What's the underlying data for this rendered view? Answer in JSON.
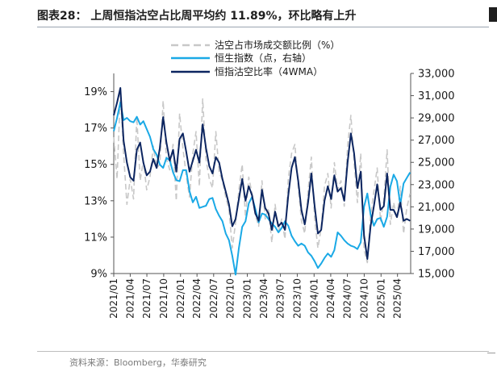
{
  "header": {
    "title": "图表28： 上周恒指沽空占比周平均约 11.89%，环比略有上升"
  },
  "footer": {
    "source": "资料来源：Bloomberg，华泰研究"
  },
  "colors": {
    "short_ratio": "#c8c8c8",
    "hsi": "#1aa9e6",
    "short_ratio_4wma": "#0c2560"
  },
  "chart_data": {
    "type": "line",
    "title": "",
    "x": [
      "2021-01-01",
      "2021-01-19",
      "2021-02-06",
      "2021-02-24",
      "2021-03-14",
      "2021-04-01",
      "2021-04-19",
      "2021-05-07",
      "2021-05-25",
      "2021-06-12",
      "2021-06-30",
      "2021-07-18",
      "2021-08-05",
      "2021-08-23",
      "2021-09-10",
      "2021-09-28",
      "2021-10-16",
      "2021-11-03",
      "2021-11-21",
      "2021-12-09",
      "2021-12-27",
      "2022-01-14",
      "2022-02-01",
      "2022-02-19",
      "2022-03-09",
      "2022-03-27",
      "2022-04-14",
      "2022-05-02",
      "2022-05-20",
      "2022-06-07",
      "2022-06-25",
      "2022-07-13",
      "2022-07-31",
      "2022-08-18",
      "2022-09-05",
      "2022-09-23",
      "2022-10-11",
      "2022-10-29",
      "2022-11-16",
      "2022-12-04",
      "2022-12-22",
      "2023-01-09",
      "2023-01-27",
      "2023-02-14",
      "2023-03-04",
      "2023-03-22",
      "2023-04-09",
      "2023-04-27",
      "2023-05-15",
      "2023-06-02",
      "2023-06-20",
      "2023-07-08",
      "2023-07-26",
      "2023-08-13",
      "2023-08-31",
      "2023-09-18",
      "2023-10-06",
      "2023-10-24",
      "2023-11-11",
      "2023-11-29",
      "2023-12-17",
      "2024-01-04",
      "2024-01-22",
      "2024-02-09",
      "2024-02-27",
      "2024-03-16",
      "2024-04-03",
      "2024-04-21",
      "2024-05-09",
      "2024-05-27",
      "2024-06-14",
      "2024-07-02",
      "2024-07-20",
      "2024-08-07",
      "2024-08-25",
      "2024-09-12",
      "2024-09-30",
      "2024-10-18",
      "2024-11-05",
      "2024-11-23",
      "2024-12-11",
      "2024-12-29",
      "2025-01-16",
      "2025-02-03",
      "2025-02-21",
      "2025-03-11",
      "2025-03-29",
      "2025-04-16",
      "2025-05-04",
      "2025-05-22",
      "2025-06-09"
    ],
    "x_ticks": [
      "2021/01",
      "2021/04",
      "2021/07",
      "2021/10",
      "2022/01",
      "2022/04",
      "2022/07",
      "2022/10",
      "2023/01",
      "2023/04",
      "2023/07",
      "2023/10",
      "2024/01",
      "2024/04",
      "2024/07",
      "2024/10",
      "2025/01",
      "2025/04"
    ],
    "x_tick_dates": [
      "2021-01-01",
      "2021-04-01",
      "2021-07-01",
      "2021-10-01",
      "2022-01-01",
      "2022-04-01",
      "2022-07-01",
      "2022-10-01",
      "2023-01-01",
      "2023-04-01",
      "2023-07-01",
      "2023-10-01",
      "2024-01-01",
      "2024-04-01",
      "2024-07-01",
      "2024-10-01",
      "2025-01-01",
      "2025-04-01"
    ],
    "x_range": [
      "2021-01-01",
      "2025-06-12"
    ],
    "y_left": {
      "lim": [
        9,
        20
      ],
      "ticks": [
        9,
        11,
        13,
        15,
        17,
        19
      ],
      "tick_labels": [
        "9%",
        "11%",
        "13%",
        "15%",
        "17%",
        "19%"
      ]
    },
    "y_right": {
      "lim": [
        15000,
        33000
      ],
      "ticks": [
        15000,
        17000,
        19000,
        21000,
        23000,
        25000,
        27000,
        29000,
        31000,
        33000
      ],
      "tick_labels": [
        "15,000",
        "17,000",
        "19,000",
        "21,000",
        "23,000",
        "25,000",
        "27,000",
        "29,000",
        "31,000",
        "33,000"
      ]
    },
    "grid": false,
    "legend_position": "top",
    "series": [
      {
        "name": "沽空占市场成交额比例（%）",
        "axis": "left",
        "style": "dashed",
        "color": "#c8c8c8",
        "values": [
          16.5,
          14.2,
          19.0,
          15.6,
          12.8,
          14.2,
          13.1,
          17.6,
          14.1,
          15.2,
          13.6,
          14.3,
          16.0,
          14.8,
          15.0,
          18.5,
          15.3,
          14.7,
          16.1,
          13.0,
          17.8,
          15.9,
          14.4,
          13.2,
          15.6,
          16.8,
          13.8,
          18.6,
          15.3,
          14.2,
          13.7,
          16.8,
          14.6,
          14.1,
          13.2,
          12.5,
          10.4,
          11.8,
          13.6,
          15.0,
          12.1,
          14.3,
          13.4,
          12.2,
          11.6,
          14.1,
          12.0,
          12.6,
          10.7,
          12.8,
          11.3,
          12.0,
          10.9,
          14.2,
          15.6,
          16.1,
          13.8,
          11.9,
          11.2,
          13.5,
          15.4,
          12.0,
          10.4,
          11.5,
          13.8,
          14.5,
          12.6,
          15.1,
          13.6,
          14.1,
          12.7,
          16.0,
          17.7,
          15.1,
          12.9,
          15.6,
          10.3,
          9.6,
          12.2,
          13.5,
          14.8,
          11.9,
          13.0,
          15.8,
          11.7,
          12.9,
          12.0,
          13.8,
          11.2,
          12.6,
          13.4
        ]
      },
      {
        "name": "恒生指数（点，右轴）",
        "axis": "right",
        "style": "solid",
        "color": "#1aa9e6",
        "values": [
          27800,
          29000,
          30400,
          28800,
          29000,
          28700,
          28600,
          29100,
          28400,
          28700,
          28000,
          27300,
          26200,
          25700,
          24800,
          24500,
          25400,
          25200,
          24100,
          23400,
          23300,
          24300,
          24300,
          22400,
          21400,
          21900,
          20900,
          21000,
          21100,
          21700,
          21800,
          20800,
          20200,
          19700,
          18600,
          18000,
          16600,
          14900,
          17300,
          19200,
          19700,
          21300,
          21900,
          20800,
          19600,
          20400,
          20300,
          19900,
          19500,
          19200,
          18700,
          19100,
          19700,
          19300,
          18400,
          17900,
          17500,
          17700,
          17500,
          16900,
          16600,
          16100,
          15500,
          15900,
          16400,
          16800,
          16500,
          17100,
          18700,
          18400,
          18000,
          17700,
          17500,
          17400,
          17200,
          17800,
          21000,
          22200,
          20300,
          19300,
          19900,
          20000,
          19200,
          20100,
          22800,
          23900,
          23300,
          21200,
          23100,
          23600,
          24100
        ]
      },
      {
        "name": "恒指沽空比率（4WMA）",
        "axis": "left",
        "style": "solid",
        "color": "#0c2560",
        "values": [
          17.7,
          18.4,
          19.2,
          16.3,
          15.1,
          14.3,
          14.1,
          15.8,
          16.2,
          15.1,
          14.4,
          14.6,
          15.3,
          14.8,
          15.9,
          17.6,
          16.2,
          15.2,
          15.8,
          14.6,
          16.4,
          16.7,
          15.7,
          14.6,
          15.2,
          15.8,
          15.1,
          17.2,
          15.9,
          14.9,
          14.5,
          15.4,
          15.1,
          14.2,
          13.5,
          12.8,
          11.6,
          12.0,
          13.1,
          14.2,
          13.0,
          13.8,
          13.3,
          12.3,
          11.9,
          13.6,
          12.6,
          12.3,
          11.4,
          12.4,
          11.6,
          11.8,
          11.4,
          13.3,
          14.8,
          15.4,
          14.1,
          12.5,
          11.7,
          12.9,
          14.5,
          12.7,
          11.2,
          11.4,
          13.0,
          13.8,
          13.1,
          14.4,
          13.5,
          13.7,
          13.0,
          15.1,
          16.7,
          15.6,
          13.7,
          14.6,
          11.1,
          9.8,
          11.6,
          12.7,
          13.9,
          12.5,
          12.7,
          14.5,
          12.5,
          12.5,
          12.1,
          12.9,
          11.9,
          12.0,
          11.9
        ]
      }
    ]
  }
}
